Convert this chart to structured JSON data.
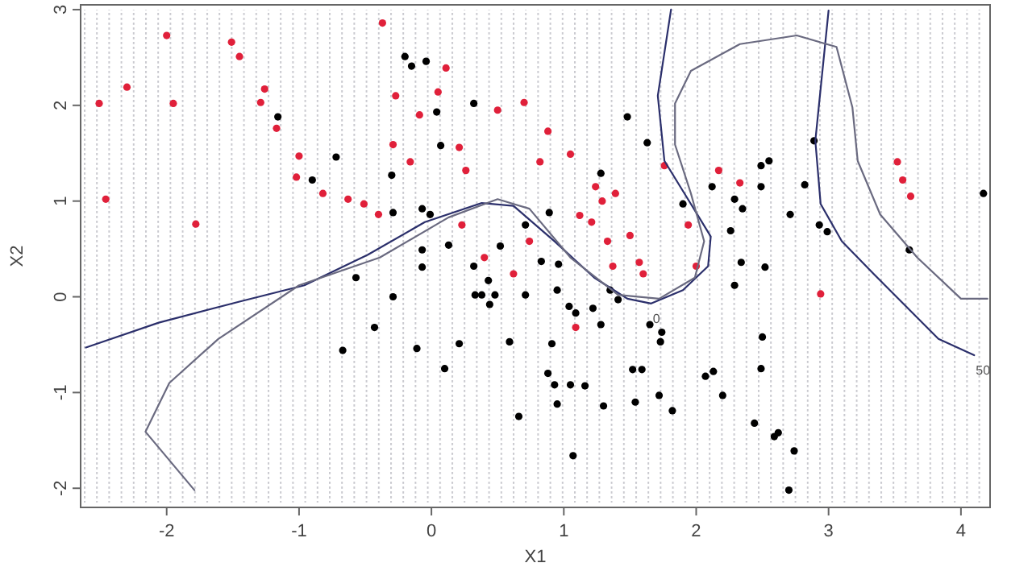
{
  "chart_data": {
    "type": "scatter",
    "xlabel": "X1",
    "ylabel": "X2",
    "xlim": [
      -2.65,
      4.22
    ],
    "ylim": [
      -2.2,
      3.05
    ],
    "xticks": [
      -2,
      -1,
      0,
      1,
      2,
      3,
      4
    ],
    "yticks": [
      -2,
      -1,
      0,
      1,
      2,
      3
    ],
    "grid": false,
    "marker": "circle",
    "series": [
      {
        "color": "#e0203a",
        "x": [
          -2.51,
          -2.46,
          -2.3,
          -2.0,
          -1.95,
          -1.78,
          -1.51,
          -1.45,
          -1.29,
          -1.17,
          -1.02,
          -1.26,
          -1.0,
          -0.82,
          -0.63,
          -0.51,
          -0.4,
          -0.37,
          -0.29,
          -0.27,
          -0.16,
          -0.09,
          0.05,
          0.11,
          0.21,
          0.26,
          0.5,
          0.7,
          0.82,
          0.88,
          1.05,
          1.24,
          1.29,
          1.12,
          1.21,
          1.33,
          1.39,
          1.5,
          1.57,
          1.37,
          1.6,
          1.76,
          1.94,
          2.0,
          2.17,
          2.33,
          2.94,
          3.52,
          3.56,
          3.62,
          1.09,
          0.74,
          0.4,
          0.23,
          0.62
        ],
        "values": [
          2.02,
          1.02,
          2.19,
          2.73,
          2.02,
          0.76,
          2.66,
          2.51,
          2.03,
          1.76,
          1.25,
          2.17,
          1.47,
          1.08,
          1.02,
          0.97,
          0.86,
          2.86,
          1.59,
          2.1,
          1.41,
          1.9,
          2.14,
          2.39,
          1.56,
          1.32,
          1.95,
          2.03,
          1.41,
          1.73,
          1.49,
          1.15,
          1.0,
          0.85,
          0.78,
          0.58,
          1.08,
          0.64,
          0.36,
          0.32,
          0.24,
          1.37,
          0.75,
          0.32,
          1.32,
          1.19,
          0.03,
          1.41,
          1.22,
          1.05,
          -0.32,
          0.58,
          0.41,
          0.75,
          0.24
        ]
      },
      {
        "color": "#000000",
        "x": [
          -1.16,
          -0.9,
          -0.72,
          -0.2,
          -0.15,
          -0.04,
          0.04,
          0.32,
          0.07,
          -0.3,
          -0.29,
          -0.07,
          -0.01,
          -0.07,
          0.13,
          0.32,
          0.52,
          0.71,
          0.83,
          1.48,
          1.63,
          1.28,
          0.89,
          2.12,
          2.49,
          2.49,
          2.55,
          1.9,
          2.29,
          2.35,
          2.26,
          2.71,
          2.82,
          2.89,
          2.93,
          2.99,
          3.61,
          4.17,
          2.34,
          2.52,
          0.96,
          1.35,
          0.95,
          1.04,
          1.09,
          1.22,
          1.28,
          0.91,
          0.88,
          0.93,
          1.05,
          1.16,
          0.95,
          1.07,
          1.3,
          1.52,
          1.59,
          1.54,
          1.65,
          1.73,
          1.74,
          1.72,
          1.82,
          2.07,
          2.13,
          2.2,
          2.29,
          2.5,
          2.49,
          2.44,
          2.59,
          2.62,
          2.74,
          2.7,
          1.41,
          -0.57,
          -0.29,
          -0.43,
          -0.67,
          -0.11,
          -0.07,
          0.1,
          0.21,
          0.33,
          0.38,
          0.43,
          0.44,
          0.48,
          0.59,
          0.71,
          0.66
        ],
        "values": [
          1.88,
          1.22,
          1.46,
          2.51,
          2.41,
          2.46,
          1.93,
          2.02,
          1.58,
          1.27,
          0.88,
          0.92,
          0.86,
          0.49,
          0.54,
          0.32,
          0.53,
          0.75,
          0.37,
          1.88,
          1.61,
          1.29,
          0.88,
          1.15,
          1.15,
          1.37,
          1.42,
          0.97,
          1.02,
          0.92,
          0.69,
          0.86,
          1.17,
          1.63,
          0.75,
          0.68,
          0.49,
          1.08,
          0.36,
          0.31,
          0.34,
          0.07,
          0.07,
          -0.1,
          -0.17,
          -0.12,
          -0.29,
          -0.49,
          -0.8,
          -0.92,
          -0.92,
          -0.93,
          -1.12,
          -1.66,
          -1.14,
          -0.76,
          -0.76,
          -1.1,
          -0.29,
          -0.47,
          -0.37,
          -1.03,
          -1.19,
          -0.83,
          -0.78,
          -1.03,
          0.12,
          -0.42,
          -0.75,
          -1.32,
          -1.46,
          -1.42,
          -1.61,
          -2.02,
          -0.03,
          0.2,
          0.0,
          -0.32,
          -0.56,
          -0.54,
          0.31,
          -0.75,
          -0.49,
          0.02,
          0.02,
          0.17,
          -0.08,
          0.02,
          -0.47,
          0.02,
          -1.25
        ]
      },
      {
        "type": "line",
        "color": "#2b2f6b",
        "marker": "none",
        "x": [
          -2.61,
          -2.06,
          -1.45,
          -0.96,
          -0.48,
          -0.05,
          0.38,
          0.62,
          0.93,
          1.23,
          1.48,
          1.66,
          1.9,
          2.09,
          2.11,
          1.96,
          1.76,
          1.71,
          1.81,
          null,
          3.0,
          2.9,
          2.94,
          3.1,
          3.34,
          3.83,
          4.1
        ],
        "values": [
          -0.53,
          -0.27,
          -0.05,
          0.12,
          0.44,
          0.78,
          0.98,
          0.95,
          0.58,
          0.2,
          -0.02,
          -0.07,
          0.07,
          0.32,
          0.63,
          0.97,
          1.42,
          2.1,
          3.0,
          null,
          2.99,
          1.63,
          0.97,
          0.58,
          0.24,
          -0.44,
          -0.61
        ]
      },
      {
        "type": "line",
        "color": "#6a6a80",
        "marker": "none",
        "x": [
          -1.79,
          -2.16,
          -1.98,
          -1.61,
          -1.0,
          -0.39,
          0.13,
          0.5,
          0.74,
          1.05,
          1.41,
          1.72,
          1.99,
          2.06,
          1.96,
          1.84,
          1.84,
          1.96,
          2.33,
          2.76,
          3.06,
          3.18,
          3.22,
          3.39,
          3.67,
          4.0,
          4.2
        ],
        "values": [
          -2.02,
          -1.41,
          -0.9,
          -0.44,
          0.12,
          0.41,
          0.83,
          1.02,
          0.92,
          0.41,
          0.02,
          -0.02,
          0.2,
          0.58,
          1.08,
          1.59,
          2.02,
          2.36,
          2.64,
          2.73,
          2.61,
          1.98,
          1.42,
          0.86,
          0.41,
          -0.02,
          -0.02
        ]
      }
    ],
    "annotations": [
      {
        "text": "0",
        "x": 1.66,
        "y": -0.07
      },
      {
        "text": "50",
        "x": 4.1,
        "y": -0.61
      }
    ]
  }
}
